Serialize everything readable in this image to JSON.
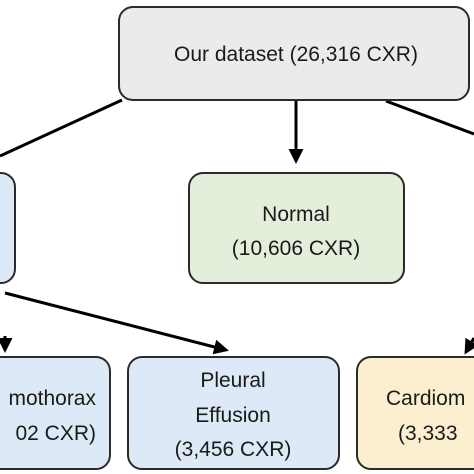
{
  "nodes": {
    "root": {
      "line1": "Our dataset (26,316 CXR)"
    },
    "normal": {
      "line1": "Normal",
      "line2": "(10,606 CXR)"
    },
    "pneumothorax": {
      "line1": "mothorax",
      "line2": "02 CXR)"
    },
    "pleural_effusion": {
      "line1": "Pleural",
      "line2": "Effusion",
      "line3": "(3,456 CXR)"
    },
    "cardiomegaly": {
      "line1": "Cardiom",
      "line2": "(3,333"
    }
  },
  "colors": {
    "root_fill": "#ebebeb",
    "normal_fill": "#e3efda",
    "blue_fill": "#dde9f6",
    "yellow_fill": "#fcefd0",
    "stroke": "#2b2b2b",
    "arrow": "#000000"
  }
}
